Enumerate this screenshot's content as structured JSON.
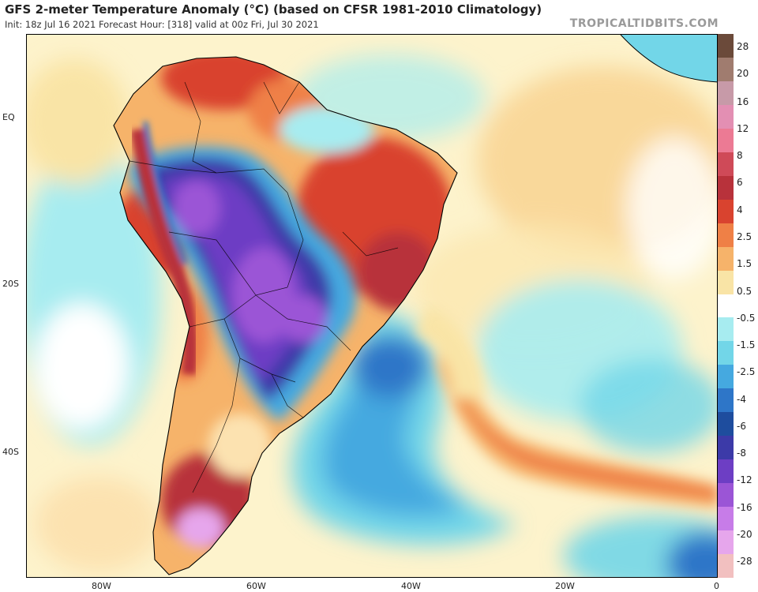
{
  "header": {
    "title": "GFS 2-meter Temperature Anomaly (°C) (based on CFSR 1981-2010 Climatology)",
    "subtitle": "Init: 18z Jul 16 2021   Forecast Hour: [318]   valid at 00z Fri, Jul 30 2021",
    "brand": "TROPICALTIDBITS.COM"
  },
  "axes": {
    "lat_labels": [
      "EQ",
      "20S",
      "40S"
    ],
    "lon_labels": [
      "80W",
      "60W",
      "40W",
      "20W",
      "0"
    ]
  },
  "colorbar": {
    "labels": [
      "28",
      "20",
      "16",
      "12",
      "8",
      "6",
      "4",
      "2.5",
      "1.5",
      "0.5",
      "-0.5",
      "-1.5",
      "-2.5",
      "-4",
      "-6",
      "-8",
      "-12",
      "-16",
      "-20",
      "-28"
    ],
    "colors": [
      "#6b4a3a",
      "#a07c6f",
      "#c79aa8",
      "#e38fb3",
      "#ec7a94",
      "#cf4a58",
      "#b8323b",
      "#d9432f",
      "#ef8046",
      "#f6b36a",
      "#f9e4a6",
      "#ffffff",
      "#a7ecf0",
      "#72d6e8",
      "#45a9e0",
      "#2e76c8",
      "#1e4d9e",
      "#3c3aa8",
      "#6d3ec4",
      "#9b55d6",
      "#c77ce8",
      "#e6a6ec",
      "#f2c0c0"
    ]
  }
}
